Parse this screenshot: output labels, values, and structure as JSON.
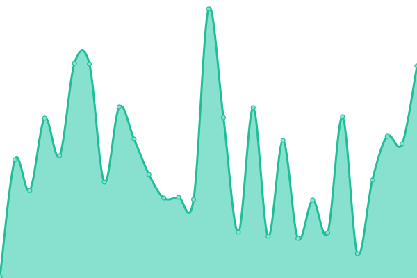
{
  "chart_data": {
    "type": "area",
    "title": "",
    "xlabel": "",
    "ylabel": "",
    "grid": false,
    "legend": "none",
    "x": [
      0,
      1,
      2,
      3,
      4,
      5,
      6,
      7,
      8,
      9,
      10,
      11,
      12,
      13,
      14,
      15,
      16,
      17,
      18,
      19,
      20,
      21,
      22,
      23,
      24,
      25,
      26,
      27,
      28
    ],
    "values": [
      2,
      170,
      126,
      230,
      176,
      309,
      308,
      138,
      246,
      200,
      149,
      115,
      116,
      113,
      387,
      231,
      66,
      245,
      60,
      198,
      57,
      112,
      65,
      232,
      35,
      141,
      204,
      193,
      305
    ],
    "ylim": [
      0,
      400
    ],
    "colors": {
      "line": "#1dbf97",
      "fill": "#88e0cf",
      "marker_fill": "#88e0cf"
    }
  }
}
